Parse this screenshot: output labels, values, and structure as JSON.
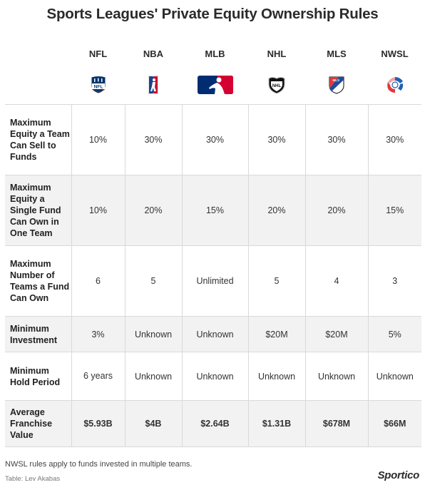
{
  "title": "Sports Leagues' Private Equity Ownership Rules",
  "leagues": [
    {
      "name": "NFL",
      "icon": "nfl-shield-logo"
    },
    {
      "name": "NBA",
      "icon": "nba-logo"
    },
    {
      "name": "MLB",
      "icon": "mlb-logo"
    },
    {
      "name": "NHL",
      "icon": "nhl-shield-logo"
    },
    {
      "name": "MLS",
      "icon": "mls-crest-logo"
    },
    {
      "name": "NWSL",
      "icon": "nwsl-logo"
    }
  ],
  "rows": [
    {
      "label": "Maximum Equity a Team Can Sell to Funds",
      "values": [
        "10%",
        "30%",
        "30%",
        "30%",
        "30%",
        "30%"
      ]
    },
    {
      "label": "Maximum Equity a Single Fund Can Own in One Team",
      "values": [
        "10%",
        "20%",
        "15%",
        "20%",
        "20%",
        "15%"
      ]
    },
    {
      "label": "Maximum Number of Teams a Fund Can Own",
      "values": [
        "6",
        "5",
        "Unlimited",
        "5",
        "4",
        "3"
      ]
    },
    {
      "label": "Minimum Investment",
      "values": [
        "3%",
        "Unknown",
        "Unknown",
        "$20M",
        "$20M",
        "5%"
      ]
    },
    {
      "label": "Minimum Hold Period",
      "values": [
        "6 years",
        "Unknown",
        "Unknown",
        "Unknown",
        "Unknown",
        "Unknown"
      ]
    },
    {
      "label": "Average Franchise Value",
      "values": [
        "$5.93B",
        "$4B",
        "$2.64B",
        "$1.31B",
        "$678M",
        "$66M"
      ]
    }
  ],
  "footnote": "NWSL rules apply to funds invested in multiple teams.",
  "credit": "Table: Lev Akabas",
  "brand": "Sportico",
  "colors": {
    "row_shade": "#f2f2f2",
    "grid_line": "#d9d9d9",
    "nfl_blue": "#013369",
    "nfl_red": "#d50a0a",
    "mlb_blue": "#002d72",
    "mlb_red": "#d50032",
    "nba_red": "#c8102e",
    "nba_blue": "#1d428a",
    "nwsl_blue": "#1e62b5",
    "nwsl_red": "#e0393e"
  }
}
